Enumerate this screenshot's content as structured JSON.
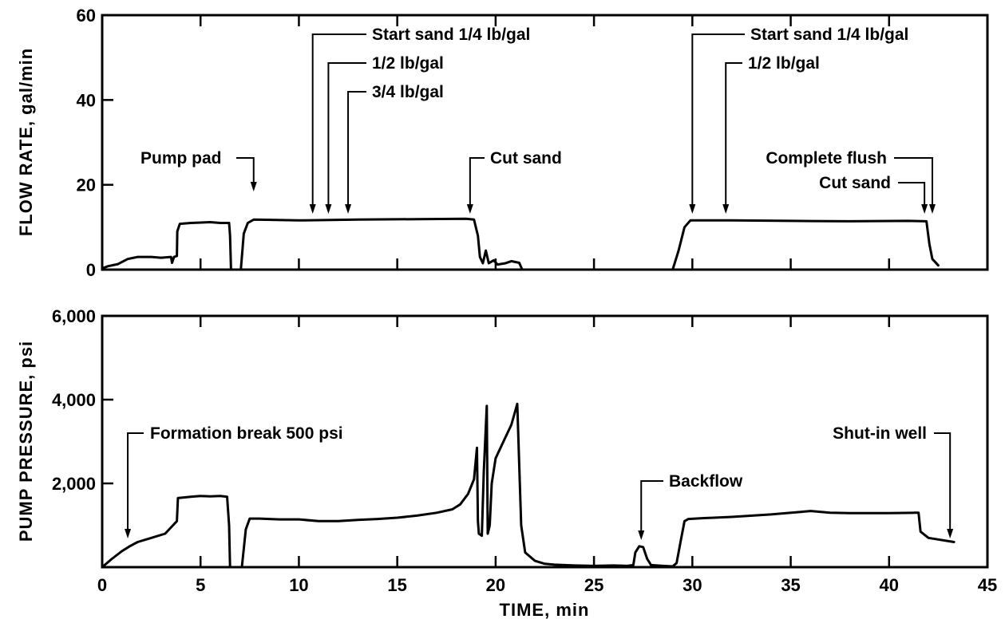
{
  "chart_data": [
    {
      "id": "flow",
      "type": "line",
      "ylabel": "FLOW RATE, gal/min",
      "xlim": [
        0,
        45
      ],
      "ylim": [
        0,
        60
      ],
      "yticks": [
        0,
        20,
        40,
        60
      ],
      "ytick_labels": [
        "0",
        "20",
        "40",
        "60"
      ],
      "xticks": [
        0,
        5,
        10,
        15,
        20,
        25,
        30,
        35,
        40,
        45
      ],
      "grid": false,
      "series": [
        {
          "segments": [
            [
              [
                0.0,
                0.3
              ],
              [
                0.3,
                0.8
              ],
              [
                0.8,
                1.3
              ],
              [
                1.3,
                2.5
              ],
              [
                1.8,
                3.0
              ],
              [
                2.5,
                3.0
              ],
              [
                3.0,
                2.8
              ],
              [
                3.5,
                3.0
              ],
              [
                3.55,
                1.6
              ],
              [
                3.65,
                3.0
              ],
              [
                3.8,
                3.2
              ],
              [
                3.82,
                9.0
              ],
              [
                3.95,
                10.8
              ],
              [
                4.5,
                11.0
              ],
              [
                5.5,
                11.2
              ],
              [
                6.0,
                11.0
              ],
              [
                6.45,
                11.0
              ],
              [
                6.5,
                8.0
              ],
              [
                6.55,
                0.0
              ]
            ],
            [
              [
                7.05,
                0.0
              ],
              [
                7.2,
                8.5
              ],
              [
                7.4,
                11.0
              ],
              [
                7.7,
                11.8
              ],
              [
                10.0,
                11.6
              ],
              [
                13.0,
                11.8
              ],
              [
                16.0,
                11.9
              ],
              [
                18.5,
                12.0
              ],
              [
                18.9,
                11.8
              ],
              [
                19.1,
                8.0
              ],
              [
                19.2,
                3.0
              ],
              [
                19.35,
                1.5
              ],
              [
                19.5,
                4.5
              ],
              [
                19.65,
                1.5
              ],
              [
                19.9,
                2.2
              ],
              [
                20.1,
                1.2
              ],
              [
                20.5,
                1.5
              ],
              [
                20.8,
                2.0
              ],
              [
                21.2,
                1.6
              ],
              [
                21.35,
                0.0
              ]
            ],
            [
              [
                29.0,
                0.0
              ],
              [
                29.3,
                4.5
              ],
              [
                29.6,
                10.0
              ],
              [
                29.9,
                11.6
              ],
              [
                32.0,
                11.6
              ],
              [
                35.0,
                11.5
              ],
              [
                38.0,
                11.4
              ],
              [
                41.0,
                11.5
              ],
              [
                41.9,
                11.4
              ],
              [
                42.05,
                6.0
              ],
              [
                42.2,
                2.5
              ],
              [
                42.5,
                1.0
              ]
            ]
          ]
        }
      ],
      "annotations": [
        {
          "text": "Pump pad",
          "x": 7.7
        },
        {
          "text": "Start sand 1/4 lb/gal",
          "x": 10.7
        },
        {
          "text": "1/2 lb/gal",
          "x": 11.5
        },
        {
          "text": "3/4 lb/gal",
          "x": 12.5
        },
        {
          "text": "Cut sand",
          "x": 18.7
        },
        {
          "text": "Start sand 1/4 lb/gal",
          "x": 30.0
        },
        {
          "text": "1/2 lb/gal",
          "x": 31.7
        },
        {
          "text": "Complete flush",
          "x": 42.2
        },
        {
          "text": "Cut sand",
          "x": 41.8
        }
      ]
    },
    {
      "id": "pressure",
      "type": "line",
      "ylabel": "PUMP PRESSURE, psi",
      "xlabel": "TIME, min",
      "xlim": [
        0,
        45
      ],
      "ylim": [
        0,
        6000
      ],
      "yticks": [
        2000,
        4000,
        6000
      ],
      "ytick_labels": [
        "2,000",
        "4,000",
        "6,000"
      ],
      "xticks": [
        0,
        5,
        10,
        15,
        20,
        25,
        30,
        35,
        40,
        45
      ],
      "xtick_labels": [
        "0",
        "5",
        "10",
        "15",
        "20",
        "25",
        "30",
        "35",
        "40",
        "45"
      ],
      "grid": false,
      "series": [
        {
          "segments": [
            [
              [
                0.0,
                0.0
              ],
              [
                0.5,
                200
              ],
              [
                1.0,
                380
              ],
              [
                1.4,
                500
              ],
              [
                1.8,
                600
              ],
              [
                2.5,
                700
              ],
              [
                3.2,
                800
              ],
              [
                3.6,
                1000
              ],
              [
                3.8,
                1100
              ],
              [
                3.85,
                1650
              ],
              [
                4.5,
                1680
              ],
              [
                5.0,
                1700
              ],
              [
                5.5,
                1690
              ],
              [
                6.0,
                1700
              ],
              [
                6.35,
                1680
              ],
              [
                6.45,
                1000
              ],
              [
                6.5,
                0
              ]
            ],
            [
              [
                7.1,
                0
              ],
              [
                7.3,
                900
              ],
              [
                7.5,
                1160
              ],
              [
                8.0,
                1160
              ],
              [
                9.0,
                1140
              ],
              [
                10.0,
                1140
              ],
              [
                11.0,
                1100
              ],
              [
                12.0,
                1100
              ],
              [
                13.0,
                1130
              ],
              [
                14.0,
                1150
              ],
              [
                15.0,
                1180
              ],
              [
                16.0,
                1230
              ],
              [
                17.0,
                1300
              ],
              [
                17.8,
                1380
              ],
              [
                18.2,
                1500
              ],
              [
                18.6,
                1750
              ],
              [
                18.9,
                2100
              ],
              [
                19.05,
                2850
              ],
              [
                19.1,
                1100
              ],
              [
                19.15,
                800
              ],
              [
                19.3,
                750
              ],
              [
                19.4,
                2300
              ],
              [
                19.55,
                3850
              ],
              [
                19.6,
                800
              ],
              [
                19.7,
                1000
              ],
              [
                19.8,
                2000
              ],
              [
                20.0,
                2600
              ],
              [
                20.4,
                3000
              ],
              [
                20.8,
                3400
              ],
              [
                21.1,
                3900
              ],
              [
                21.3,
                1000
              ],
              [
                21.5,
                350
              ],
              [
                22.0,
                150
              ],
              [
                22.5,
                80
              ],
              [
                23.0,
                60
              ],
              [
                24.0,
                40
              ],
              [
                25.0,
                30
              ],
              [
                26.0,
                40
              ],
              [
                26.7,
                30
              ],
              [
                27.0,
                50
              ],
              [
                27.1,
                350
              ],
              [
                27.3,
                500
              ],
              [
                27.5,
                480
              ],
              [
                27.7,
                200
              ],
              [
                27.9,
                50
              ],
              [
                28.5,
                30
              ],
              [
                29.0,
                20
              ],
              [
                29.2,
                100
              ],
              [
                29.4,
                600
              ],
              [
                29.6,
                1100
              ],
              [
                29.8,
                1150
              ],
              [
                30.5,
                1170
              ],
              [
                32.0,
                1200
              ],
              [
                34.0,
                1260
              ],
              [
                35.5,
                1320
              ],
              [
                36.0,
                1340
              ],
              [
                37.0,
                1300
              ],
              [
                38.0,
                1290
              ],
              [
                40.0,
                1290
              ],
              [
                41.3,
                1300
              ],
              [
                41.5,
                1300
              ],
              [
                41.6,
                850
              ],
              [
                42.0,
                700
              ],
              [
                43.3,
                600
              ]
            ]
          ]
        }
      ],
      "annotations": [
        {
          "text": "Formation break 500 psi",
          "x": 1.3
        },
        {
          "text": "Backflow",
          "x": 27.4
        },
        {
          "text": "Shut-in well",
          "x": 43.1
        }
      ]
    }
  ]
}
